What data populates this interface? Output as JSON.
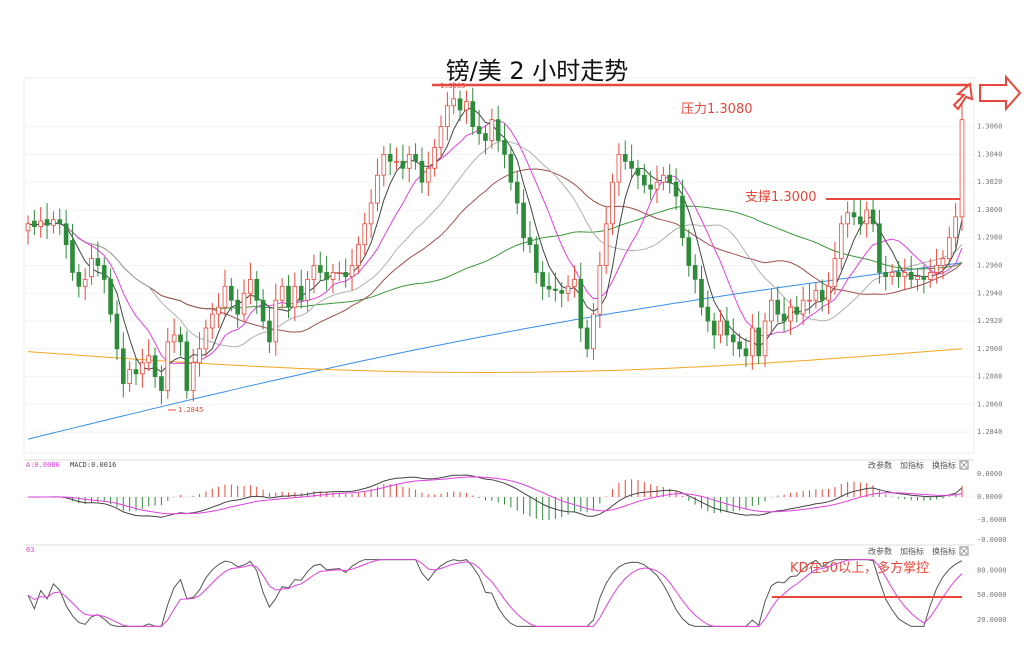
{
  "chart_data": [
    {
      "type": "candlestick",
      "title": "镑/美  2 小时走势",
      "ylim": [
        1.2825,
        1.3095
      ],
      "y_ticks": [
        "1.3060",
        "1.3040",
        "1.3020",
        "1.3000",
        "1.2980",
        "1.2960",
        "1.2940",
        "1.2920",
        "1.2900",
        "1.2880",
        "1.2860",
        "1.2840"
      ],
      "y_tick_values": [
        1.306,
        1.304,
        1.302,
        1.3,
        1.298,
        1.296,
        1.294,
        1.292,
        1.29,
        1.288,
        1.286,
        1.284
      ],
      "high_marker_label": "1.3085",
      "low_marker_label": "1.2845",
      "annotations": {
        "resistance_label": "压力1.3080",
        "support_label": "支撑1.3000",
        "resistance_value": 1.308,
        "support_value": 1.3
      },
      "colors": {
        "up": "#e8483b",
        "down": "#2e8b3a",
        "annotation": "#e8483b",
        "ma5": "#444444",
        "ma10": "#e040e0",
        "ma20": "#b0b0b0",
        "ma30": "#a05050",
        "ma60": "#3c9a3c",
        "ma120": "#3a8ee6",
        "ma250": "#f5a623"
      },
      "candles_close": [
        1.299,
        1.2988,
        1.2992,
        1.2989,
        1.2993,
        1.299,
        1.2975,
        1.2955,
        1.2945,
        1.295,
        1.2965,
        1.296,
        1.295,
        1.2925,
        1.29,
        1.2875,
        1.2885,
        1.2882,
        1.289,
        1.2895,
        1.288,
        1.287,
        1.2905,
        1.291,
        1.2905,
        1.287,
        1.289,
        1.29,
        1.2915,
        1.2925,
        1.293,
        1.2945,
        1.2935,
        1.2925,
        1.294,
        1.295,
        1.2935,
        1.292,
        1.2905,
        1.2935,
        1.2945,
        1.293,
        1.2945,
        1.2935,
        1.295,
        1.296,
        1.2955,
        1.295,
        1.2955,
        1.2955,
        1.2952,
        1.296,
        1.2975,
        1.299,
        1.3005,
        1.3025,
        1.304,
        1.3035,
        1.3035,
        1.303,
        1.304,
        1.3035,
        1.302,
        1.303,
        1.3045,
        1.306,
        1.3075,
        1.308,
        1.3072,
        1.3078,
        1.306,
        1.3055,
        1.305,
        1.3065,
        1.305,
        1.304,
        1.302,
        1.3005,
        1.298,
        1.2975,
        1.2955,
        1.2945,
        1.2943,
        1.2942,
        1.294,
        1.2945,
        1.295,
        1.2915,
        1.29,
        1.2925,
        1.296,
        1.299,
        1.302,
        1.304,
        1.3035,
        1.303,
        1.3025,
        1.3018,
        1.3015,
        1.302,
        1.3025,
        1.302,
        1.301,
        1.298,
        1.296,
        1.295,
        1.293,
        1.292,
        1.291,
        1.292,
        1.291,
        1.2905,
        1.29,
        1.2895,
        1.2915,
        1.2895,
        1.292,
        1.2935,
        1.2925,
        1.292,
        1.293,
        1.2925,
        1.2935,
        1.2935,
        1.2942,
        1.2935,
        1.2945,
        1.2965,
        1.299,
        1.2998,
        1.2995,
        1.299,
        1.3,
        1.299,
        1.2955,
        1.2952,
        1.2955,
        1.2952,
        1.2955,
        1.295,
        1.2952,
        1.295,
        1.2955,
        1.296,
        1.2965,
        1.298,
        1.2995,
        1.3065
      ],
      "candles_open": [
        1.2985,
        1.2992,
        1.2988,
        1.2993,
        1.2989,
        1.2993,
        1.299,
        1.2978,
        1.2955,
        1.2945,
        1.2952,
        1.2965,
        1.296,
        1.295,
        1.2925,
        1.29,
        1.2875,
        1.2885,
        1.2882,
        1.289,
        1.2895,
        1.288,
        1.287,
        1.2905,
        1.291,
        1.2905,
        1.287,
        1.289,
        1.29,
        1.2915,
        1.2925,
        1.293,
        1.2945,
        1.2935,
        1.2925,
        1.294,
        1.295,
        1.2935,
        1.292,
        1.2905,
        1.2935,
        1.2945,
        1.293,
        1.2945,
        1.2935,
        1.295,
        1.296,
        1.2955,
        1.295,
        1.2955,
        1.2955,
        1.2952,
        1.296,
        1.2975,
        1.299,
        1.3005,
        1.3025,
        1.304,
        1.3035,
        1.3035,
        1.303,
        1.304,
        1.3035,
        1.302,
        1.303,
        1.3045,
        1.306,
        1.3075,
        1.308,
        1.3072,
        1.3078,
        1.306,
        1.3055,
        1.305,
        1.3065,
        1.305,
        1.304,
        1.302,
        1.3005,
        1.298,
        1.2975,
        1.2955,
        1.2945,
        1.2943,
        1.2942,
        1.294,
        1.2945,
        1.295,
        1.2915,
        1.29,
        1.2925,
        1.296,
        1.299,
        1.302,
        1.304,
        1.3035,
        1.303,
        1.3025,
        1.3018,
        1.3015,
        1.302,
        1.3025,
        1.302,
        1.301,
        1.298,
        1.296,
        1.295,
        1.293,
        1.292,
        1.291,
        1.292,
        1.291,
        1.2905,
        1.29,
        1.2895,
        1.2915,
        1.2895,
        1.292,
        1.2935,
        1.2925,
        1.292,
        1.293,
        1.2925,
        1.2935,
        1.2935,
        1.2942,
        1.2935,
        1.2945,
        1.2965,
        1.299,
        1.2998,
        1.2995,
        1.299,
        1.3,
        1.299,
        1.2955,
        1.2952,
        1.2955,
        1.2952,
        1.2955,
        1.295,
        1.2952,
        1.295,
        1.2955,
        1.296,
        1.2965,
        1.298,
        1.2995
      ]
    },
    {
      "type": "line",
      "name": "MACD",
      "header_left": "A:0.0086",
      "header_mid": "MACD:0.0016",
      "buttons": [
        "改参数",
        "加指标",
        "换指标"
      ],
      "y_ticks": [
        "0.0000",
        "0.0000",
        "-0.0000",
        "-0.0000"
      ],
      "ylim": [
        -1,
        1
      ]
    },
    {
      "type": "line",
      "name": "KD",
      "header_left": "63",
      "buttons": [
        "改参数",
        "加指标",
        "换指标"
      ],
      "y_ticks": [
        "80.0000",
        "50.0000",
        "20.0000"
      ],
      "y_tick_values": [
        80,
        50,
        20
      ],
      "ylim": [
        10,
        95
      ],
      "annotation": "KD在50以上，多方掌控",
      "level_value": 50
    }
  ]
}
